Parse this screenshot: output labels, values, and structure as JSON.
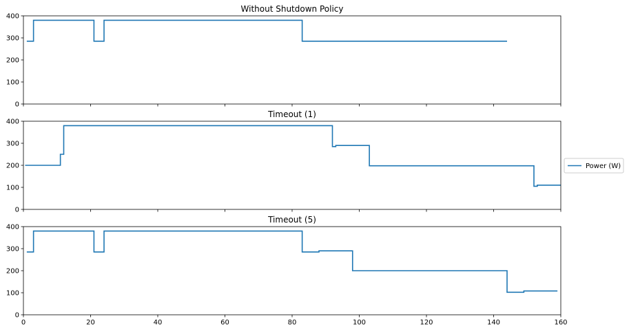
{
  "chart_data": {
    "type": "line",
    "shared_x": true,
    "xlim": [
      0,
      160
    ],
    "xticks": [
      0,
      20,
      40,
      60,
      80,
      100,
      120,
      140,
      160
    ],
    "series_color": "#1f77b4",
    "legend": {
      "label": "Power (W)",
      "placement": "center-right outside"
    },
    "grid": false,
    "subplots": [
      {
        "title": "Without Shutdown Policy",
        "ylim": [
          0,
          400
        ],
        "yticks": [
          0,
          100,
          200,
          300,
          400
        ],
        "show_xticklabels": false,
        "step": [
          [
            1,
            285
          ],
          [
            3,
            380
          ],
          [
            21,
            285
          ],
          [
            24,
            380
          ],
          [
            83,
            285
          ],
          [
            144,
            285
          ]
        ]
      },
      {
        "title": "Timeout (1)",
        "ylim": [
          0,
          400
        ],
        "yticks": [
          0,
          100,
          200,
          300,
          400
        ],
        "show_xticklabels": false,
        "step": [
          [
            0.5,
            200
          ],
          [
            11,
            250
          ],
          [
            12,
            380
          ],
          [
            92,
            285
          ],
          [
            93,
            290
          ],
          [
            103,
            198
          ],
          [
            152,
            105
          ],
          [
            153,
            110
          ],
          [
            160,
            110
          ]
        ]
      },
      {
        "title": "Timeout (5)",
        "ylim": [
          0,
          400
        ],
        "yticks": [
          0,
          100,
          200,
          300,
          400
        ],
        "show_xticklabels": true,
        "step": [
          [
            1,
            285
          ],
          [
            3,
            380
          ],
          [
            21,
            285
          ],
          [
            24,
            380
          ],
          [
            83,
            285
          ],
          [
            88,
            290
          ],
          [
            98,
            200
          ],
          [
            144,
            102
          ],
          [
            149,
            108
          ],
          [
            159,
            108
          ]
        ]
      }
    ]
  }
}
